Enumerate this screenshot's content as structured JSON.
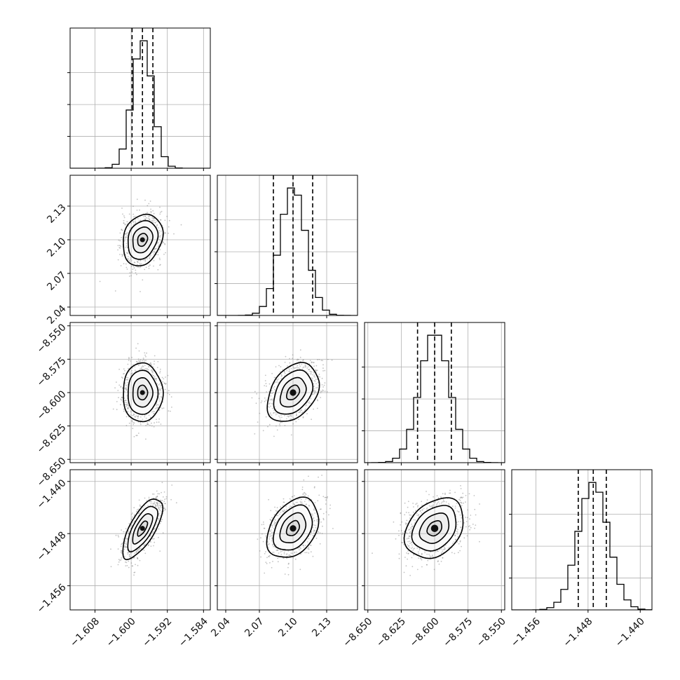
{
  "chart_data": {
    "type": "corner",
    "title": "",
    "grid": true,
    "parameters": [
      {
        "index": 0,
        "center": -1.5975,
        "sigma": 0.0022,
        "range": [
          -1.6135,
          -1.5825
        ],
        "ticks": [
          -1.608,
          -1.6,
          -1.592,
          -1.584
        ],
        "tick_labels": [
          "−1.608",
          "−1.600",
          "−1.592",
          "−1.584"
        ],
        "quantiles": [
          -1.5998,
          -1.5975,
          -1.5952
        ]
      },
      {
        "index": 1,
        "center": 2.1,
        "sigma": 0.0115,
        "range": [
          2.0325,
          2.1575
        ],
        "ticks": [
          2.04,
          2.07,
          2.1,
          2.13
        ],
        "tick_labels": [
          "2.04",
          "2.07",
          "2.10",
          "2.13"
        ],
        "quantiles": [
          2.0825,
          2.1,
          2.1175
        ]
      },
      {
        "index": 2,
        "center": -8.6,
        "sigma": 0.011,
        "range": [
          -8.6525,
          -8.5475
        ],
        "ticks": [
          -8.65,
          -8.625,
          -8.6,
          -8.575,
          -8.55
        ],
        "tick_labels": [
          "−8.650",
          "−8.625",
          "−8.600",
          "−8.575",
          "−8.550"
        ],
        "quantiles": [
          -8.6128,
          -8.6,
          -8.5875
        ]
      },
      {
        "index": 3,
        "center": -1.4472,
        "sigma": 0.0023,
        "range": [
          -1.4597,
          -1.4382
        ],
        "ticks": [
          -1.456,
          -1.448,
          -1.44
        ],
        "tick_labels": [
          "−1.456",
          "−1.448",
          "−1.440"
        ],
        "quantiles": [
          -1.4495,
          -1.4472,
          -1.4452
        ]
      }
    ],
    "correlations": [
      {
        "x": 0,
        "y": 1,
        "rho": 0.2
      },
      {
        "x": 0,
        "y": 2,
        "rho": 0.0
      },
      {
        "x": 1,
        "y": 2,
        "rho": 0.35
      },
      {
        "x": 0,
        "y": 3,
        "rho": 0.7
      },
      {
        "x": 1,
        "y": 3,
        "rho": 0.35
      },
      {
        "x": 2,
        "y": 3,
        "rho": 0.3
      }
    ],
    "contour_levels_sigma": [
      0.5,
      1.0,
      1.5,
      2.0
    ],
    "histogram_bins": 20,
    "colors": {
      "ink": "#000000",
      "grid": "#b0b0b0",
      "points": "#7a7a7a"
    }
  }
}
